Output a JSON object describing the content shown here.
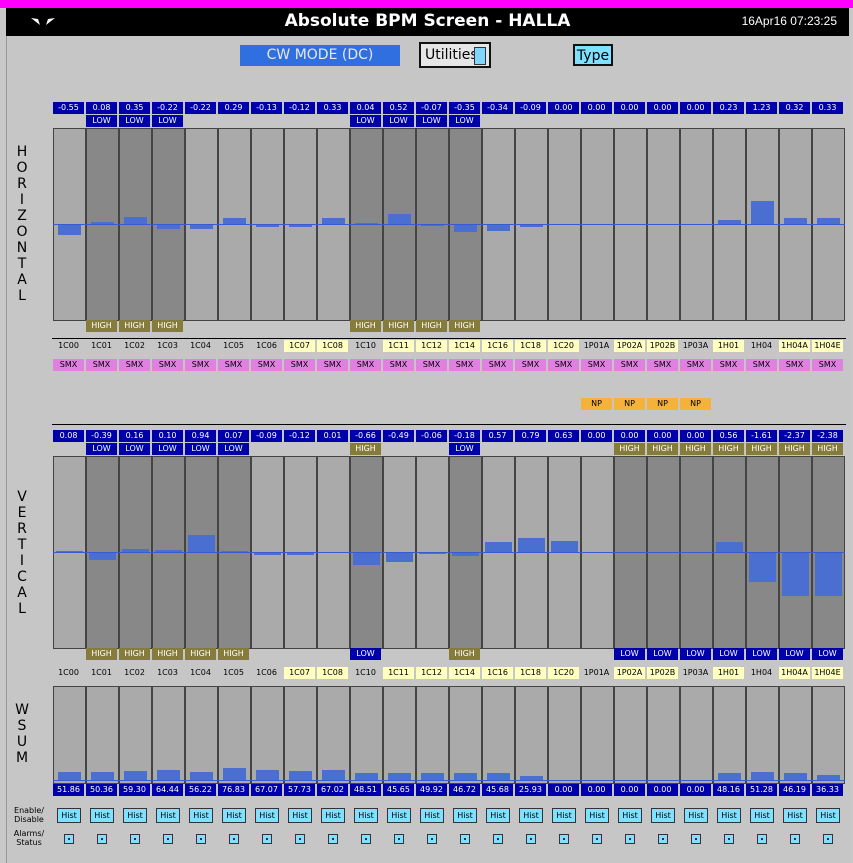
{
  "window": {
    "title": "Absolute BPM Screen - HALLA",
    "clock": "16Apr16 07:23:25",
    "logo_icon": "wings-logo-icon"
  },
  "controls": {
    "mode_label": "CW MODE (DC)",
    "utilities_label": "Utilities",
    "type_label": "Type"
  },
  "axes": {
    "horizontal": [
      "H",
      "O",
      "R",
      "I",
      "Z",
      "O",
      "N",
      "T",
      "A",
      "L"
    ],
    "vertical": [
      "V",
      "E",
      "R",
      "T",
      "I",
      "C",
      "A",
      "L"
    ],
    "wsum": [
      "W",
      "S",
      "U",
      "M"
    ]
  },
  "footer": {
    "enable_label": "Enable/ Disable",
    "alarms_label": "Alarms/ Status",
    "hist_label": "Hist"
  },
  "colors": {
    "value_bg": "#0000aa",
    "bar": "#4a6fd0",
    "high_bg": "#857b3a",
    "np_bg": "#f5b23a",
    "smx_bg": "#e080e0",
    "bpm_highlight": "#ffffc0"
  },
  "bpms": [
    {
      "name": "1C00",
      "y": false,
      "h": "-0.55",
      "ht": "",
      "hb": "",
      "v": "0.08",
      "vt": "",
      "vb": "",
      "w": "51.86",
      "np": "",
      "hshade": "light",
      "vshade": "light",
      "hv": -0.55,
      "vv": 0.08,
      "wv": 51.86
    },
    {
      "name": "1C01",
      "y": false,
      "h": "0.08",
      "ht": "LOW",
      "hb": "HIGH",
      "v": "-0.39",
      "vt": "LOW",
      "vb": "HIGH",
      "w": "50.36",
      "np": "",
      "hshade": "dark",
      "vshade": "dark",
      "hv": 0.08,
      "vv": -0.39,
      "wv": 50.36
    },
    {
      "name": "1C02",
      "y": false,
      "h": "0.35",
      "ht": "LOW",
      "hb": "HIGH",
      "v": "0.16",
      "vt": "LOW",
      "vb": "HIGH",
      "w": "59.30",
      "np": "",
      "hshade": "dark",
      "vshade": "dark",
      "hv": 0.35,
      "vv": 0.16,
      "wv": 59.3
    },
    {
      "name": "1C03",
      "y": false,
      "h": "-0.22",
      "ht": "LOW",
      "hb": "HIGH",
      "v": "0.10",
      "vt": "LOW",
      "vb": "HIGH",
      "w": "64.44",
      "np": "",
      "hshade": "dark",
      "vshade": "dark",
      "hv": -0.22,
      "vv": 0.1,
      "wv": 64.44
    },
    {
      "name": "1C04",
      "y": false,
      "h": "-0.22",
      "ht": "",
      "hb": "",
      "v": "0.94",
      "vt": "LOW",
      "vb": "HIGH",
      "w": "56.22",
      "np": "",
      "hshade": "light",
      "vshade": "dark",
      "hv": -0.22,
      "vv": 0.94,
      "wv": 56.22
    },
    {
      "name": "1C05",
      "y": false,
      "h": "0.29",
      "ht": "",
      "hb": "",
      "v": "0.07",
      "vt": "LOW",
      "vb": "HIGH",
      "w": "76.83",
      "np": "",
      "hshade": "light",
      "vshade": "dark",
      "hv": 0.29,
      "vv": 0.07,
      "wv": 76.83
    },
    {
      "name": "1C06",
      "y": false,
      "h": "-0.13",
      "ht": "",
      "hb": "",
      "v": "-0.09",
      "vt": "",
      "vb": "",
      "w": "67.07",
      "np": "",
      "hshade": "light",
      "vshade": "light",
      "hv": -0.13,
      "vv": -0.09,
      "wv": 67.07
    },
    {
      "name": "1C07",
      "y": true,
      "h": "-0.12",
      "ht": "",
      "hb": "",
      "v": "-0.12",
      "vt": "",
      "vb": "",
      "w": "57.73",
      "np": "",
      "hshade": "light",
      "vshade": "light",
      "hv": -0.12,
      "vv": -0.12,
      "wv": 57.73
    },
    {
      "name": "1C08",
      "y": true,
      "h": "0.33",
      "ht": "",
      "hb": "",
      "v": "0.01",
      "vt": "",
      "vb": "",
      "w": "67.02",
      "np": "",
      "hshade": "light",
      "vshade": "light",
      "hv": 0.33,
      "vv": 0.01,
      "wv": 67.02
    },
    {
      "name": "1C10",
      "y": false,
      "h": "0.04",
      "ht": "LOW",
      "hb": "HIGH",
      "v": "-0.66",
      "vt": "HIGH",
      "vb": "LOW",
      "w": "48.51",
      "np": "",
      "hshade": "dark",
      "vshade": "dark",
      "hv": 0.04,
      "vv": -0.66,
      "wv": 48.51
    },
    {
      "name": "1C11",
      "y": true,
      "h": "0.52",
      "ht": "LOW",
      "hb": "HIGH",
      "v": "-0.49",
      "vt": "",
      "vb": "",
      "w": "45.65",
      "np": "",
      "hshade": "dark",
      "vshade": "light",
      "hv": 0.52,
      "vv": -0.49,
      "wv": 45.65
    },
    {
      "name": "1C12",
      "y": true,
      "h": "-0.07",
      "ht": "LOW",
      "hb": "HIGH",
      "v": "-0.06",
      "vt": "",
      "vb": "",
      "w": "49.92",
      "np": "",
      "hshade": "dark",
      "vshade": "light",
      "hv": -0.07,
      "vv": -0.06,
      "wv": 49.92
    },
    {
      "name": "1C14",
      "y": true,
      "h": "-0.35",
      "ht": "LOW",
      "hb": "HIGH",
      "v": "-0.18",
      "vt": "LOW",
      "vb": "HIGH",
      "w": "46.72",
      "np": "",
      "hshade": "dark",
      "vshade": "dark",
      "hv": -0.35,
      "vv": -0.18,
      "wv": 46.72
    },
    {
      "name": "1C16",
      "y": true,
      "h": "-0.34",
      "ht": "",
      "hb": "",
      "v": "0.57",
      "vt": "",
      "vb": "",
      "w": "45.68",
      "np": "",
      "hshade": "light",
      "vshade": "light",
      "hv": -0.34,
      "vv": 0.57,
      "wv": 45.68
    },
    {
      "name": "1C18",
      "y": true,
      "h": "-0.09",
      "ht": "",
      "hb": "",
      "v": "0.79",
      "vt": "",
      "vb": "",
      "w": "25.93",
      "np": "",
      "hshade": "light",
      "vshade": "light",
      "hv": -0.09,
      "vv": 0.79,
      "wv": 25.93
    },
    {
      "name": "1C20",
      "y": true,
      "h": "0.00",
      "ht": "",
      "hb": "",
      "v": "0.63",
      "vt": "",
      "vb": "",
      "w": "0.00",
      "np": "",
      "hshade": "light",
      "vshade": "light",
      "hv": 0,
      "vv": 0.63,
      "wv": 0
    },
    {
      "name": "1P01A",
      "y": false,
      "h": "0.00",
      "ht": "",
      "hb": "",
      "v": "0.00",
      "vt": "",
      "vb": "",
      "w": "0.00",
      "np": "NP",
      "hshade": "light",
      "vshade": "light",
      "hv": 0,
      "vv": 0,
      "wv": 0
    },
    {
      "name": "1P02A",
      "y": true,
      "h": "0.00",
      "ht": "",
      "hb": "",
      "v": "0.00",
      "vt": "HIGH",
      "vb": "LOW",
      "w": "0.00",
      "np": "NP",
      "hshade": "light",
      "vshade": "dark",
      "hv": 0,
      "vv": 0,
      "wv": 0
    },
    {
      "name": "1P02B",
      "y": true,
      "h": "0.00",
      "ht": "",
      "hb": "",
      "v": "0.00",
      "vt": "HIGH",
      "vb": "LOW",
      "w": "0.00",
      "np": "NP",
      "hshade": "light",
      "vshade": "dark",
      "hv": 0,
      "vv": 0,
      "wv": 0
    },
    {
      "name": "1P03A",
      "y": false,
      "h": "0.00",
      "ht": "",
      "hb": "",
      "v": "0.00",
      "vt": "HIGH",
      "vb": "LOW",
      "w": "0.00",
      "np": "NP",
      "hshade": "light",
      "vshade": "dark",
      "hv": 0,
      "vv": 0,
      "wv": 0
    },
    {
      "name": "1H01",
      "y": true,
      "h": "0.23",
      "ht": "",
      "hb": "",
      "v": "0.56",
      "vt": "HIGH",
      "vb": "LOW",
      "w": "48.16",
      "np": "",
      "hshade": "light",
      "vshade": "dark",
      "hv": 0.23,
      "vv": 0.56,
      "wv": 48.16
    },
    {
      "name": "1H04",
      "y": false,
      "h": "1.23",
      "ht": "",
      "hb": "",
      "v": "-1.61",
      "vt": "HIGH",
      "vb": "LOW",
      "w": "51.28",
      "np": "",
      "hshade": "light",
      "vshade": "dark",
      "hv": 1.23,
      "vv": -1.61,
      "wv": 51.28
    },
    {
      "name": "1H04A",
      "y": true,
      "h": "0.32",
      "ht": "",
      "hb": "",
      "v": "-2.37",
      "vt": "HIGH",
      "vb": "LOW",
      "w": "46.19",
      "np": "",
      "hshade": "light",
      "vshade": "dark",
      "hv": 0.32,
      "vv": -2.37,
      "wv": 46.19
    },
    {
      "name": "1H04E",
      "y": true,
      "h": "0.33",
      "ht": "",
      "hb": "",
      "v": "-2.38",
      "vt": "HIGH",
      "vb": "LOW",
      "w": "36.33",
      "np": "",
      "hshade": "light",
      "vshade": "dark",
      "hv": 0.33,
      "vv": -2.38,
      "wv": 36.33
    }
  ],
  "smx_label": "SMX"
}
